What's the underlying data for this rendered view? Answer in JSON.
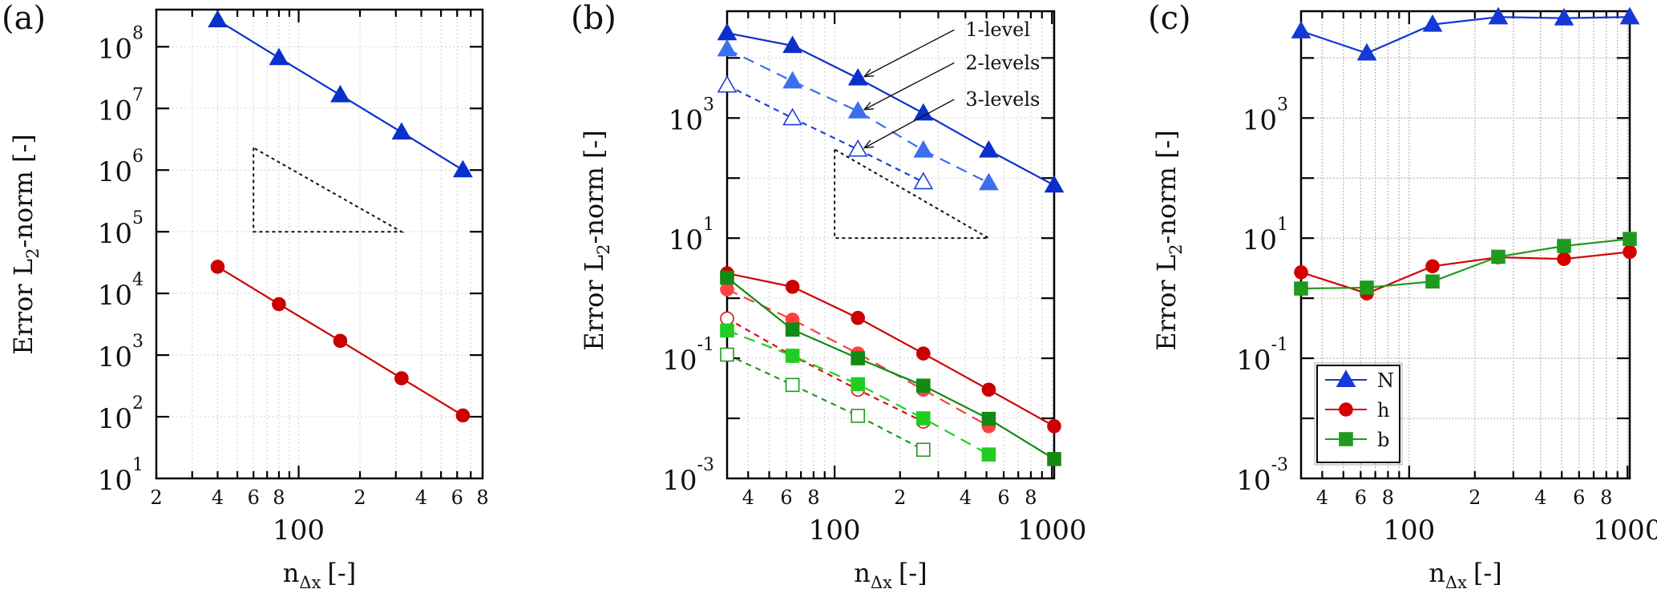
{
  "figure": {
    "panels": [
      "(a)",
      "(b)",
      "(c)"
    ]
  },
  "chart_data": [
    {
      "id": "a",
      "panel_label": "(a)",
      "type": "line",
      "xscale": "log",
      "yscale": "log",
      "xlim": [
        20,
        800
      ],
      "ylim": [
        10,
        400000000
      ],
      "xlabel": "n_Δx [-]",
      "xlabel_main": "n",
      "xlabel_sub": "Δx",
      "xlabel_unit": "[-]",
      "ylabel": "Error L2-norm [-]",
      "ylabel_pre": "Error L",
      "ylabel_sub": "2",
      "ylabel_post": "-norm [-]",
      "grid": true,
      "x_minor_tick_labels": [
        {
          "value": 20,
          "label": "2"
        },
        {
          "value": 40,
          "label": "4"
        },
        {
          "value": 60,
          "label": "6"
        },
        {
          "value": 80,
          "label": "8"
        },
        {
          "value": 200,
          "label": "2"
        },
        {
          "value": 400,
          "label": "4"
        },
        {
          "value": 600,
          "label": "6"
        },
        {
          "value": 800,
          "label": "8"
        }
      ],
      "x_major_tick_labels": [
        {
          "value": 100,
          "label": "100"
        }
      ],
      "y_tick_labels": [
        {
          "value": 10,
          "base": "10",
          "exp": "1"
        },
        {
          "value": 100,
          "base": "10",
          "exp": "2"
        },
        {
          "value": 1000,
          "base": "10",
          "exp": "3"
        },
        {
          "value": 10000,
          "base": "10",
          "exp": "4"
        },
        {
          "value": 100000,
          "base": "10",
          "exp": "5"
        },
        {
          "value": 1000000,
          "base": "10",
          "exp": "6"
        },
        {
          "value": 10000000,
          "base": "10",
          "exp": "7"
        },
        {
          "value": 100000000,
          "base": "10",
          "exp": "8"
        }
      ],
      "series": [
        {
          "name": "N",
          "color": "#0a2fcc",
          "marker": "triangle",
          "fill": "solid",
          "line": "solid",
          "x": [
            40,
            80,
            160,
            320,
            640
          ],
          "y": [
            270000000,
            66000000,
            16500000,
            4100000,
            1000000
          ]
        },
        {
          "name": "h",
          "color": "#cc0000",
          "marker": "circle",
          "fill": "solid",
          "line": "solid",
          "x": [
            40,
            80,
            160,
            320,
            640
          ],
          "y": [
            27000,
            6700,
            1700,
            420,
            105
          ]
        }
      ],
      "slope_triangle": {
        "points": [
          [
            60,
            2300000
          ],
          [
            60,
            100000
          ],
          [
            320,
            100000
          ]
        ]
      }
    },
    {
      "id": "b",
      "panel_label": "(b)",
      "type": "line",
      "xscale": "log",
      "yscale": "log",
      "xlim": [
        32,
        1024
      ],
      "ylim": [
        0.001,
        60000
      ],
      "xlabel": "n_Δx [-]",
      "xlabel_main": "n",
      "xlabel_sub": "Δx",
      "xlabel_unit": "[-]",
      "ylabel": "Error L2-norm [-]",
      "ylabel_pre": "Error L",
      "ylabel_sub": "2",
      "ylabel_post": "-norm [-]",
      "grid": true,
      "x_minor_tick_labels": [
        {
          "value": 40,
          "label": "4"
        },
        {
          "value": 60,
          "label": "6"
        },
        {
          "value": 80,
          "label": "8"
        },
        {
          "value": 200,
          "label": "2"
        },
        {
          "value": 400,
          "label": "4"
        },
        {
          "value": 600,
          "label": "6"
        },
        {
          "value": 800,
          "label": "8"
        }
      ],
      "x_major_tick_labels": [
        {
          "value": 100,
          "label": "100"
        },
        {
          "value": 1000,
          "label": "1000"
        }
      ],
      "y_tick_labels": [
        {
          "value": 0.001,
          "base": "10",
          "exp": "-3"
        },
        {
          "value": 0.1,
          "base": "10",
          "exp": "-1"
        },
        {
          "value": 10,
          "base": "10",
          "exp": "1"
        },
        {
          "value": 1000,
          "base": "10",
          "exp": "3"
        }
      ],
      "series": [
        {
          "name": "N 1-level",
          "color": "#0a2fcc",
          "marker": "triangle",
          "fill": "solid",
          "line": "solid",
          "x": [
            32,
            64,
            128,
            256,
            512,
            1024
          ],
          "y": [
            26000,
            16000,
            4600,
            1200,
            290,
            76
          ]
        },
        {
          "name": "N 2-levels",
          "color": "#3b6ff0",
          "marker": "triangle",
          "fill": "solid",
          "line": "dashed",
          "x": [
            32,
            64,
            128,
            256,
            512
          ],
          "y": [
            14000,
            4100,
            1300,
            290,
            83
          ]
        },
        {
          "name": "N 3-levels",
          "color": "#1a40d8",
          "marker": "triangle",
          "fill": "open",
          "line": "dotted",
          "x": [
            32,
            64,
            128,
            256
          ],
          "y": [
            3500,
            1000,
            300,
            86
          ]
        },
        {
          "name": "h 1-level",
          "color": "#cc0000",
          "marker": "circle",
          "fill": "solid",
          "line": "solid",
          "x": [
            32,
            64,
            128,
            256,
            512,
            1024
          ],
          "y": [
            2.6,
            1.55,
            0.47,
            0.12,
            0.03,
            0.0074
          ]
        },
        {
          "name": "h 2-levels",
          "color": "#ff4040",
          "marker": "circle",
          "fill": "solid",
          "line": "dashed",
          "x": [
            32,
            64,
            128,
            256,
            512
          ],
          "y": [
            1.4,
            0.44,
            0.12,
            0.03,
            0.0074
          ]
        },
        {
          "name": "h 3-levels",
          "color": "#d81010",
          "marker": "circle",
          "fill": "open",
          "line": "dotted",
          "x": [
            32,
            64,
            128,
            256
          ],
          "y": [
            0.46,
            0.11,
            0.03,
            0.0088
          ]
        },
        {
          "name": "b 1-level",
          "color": "#138a13",
          "marker": "square",
          "fill": "solid",
          "line": "solid",
          "x": [
            32,
            64,
            128,
            256,
            512,
            1024
          ],
          "y": [
            2.2,
            0.3,
            0.1,
            0.035,
            0.0098,
            0.0021
          ]
        },
        {
          "name": "b 2-levels",
          "color": "#22cc22",
          "marker": "square",
          "fill": "solid",
          "line": "dashed",
          "x": [
            32,
            64,
            128,
            256,
            512
          ],
          "y": [
            0.29,
            0.11,
            0.037,
            0.01,
            0.0025
          ]
        },
        {
          "name": "b 3-levels",
          "color": "#1f9a1f",
          "marker": "square",
          "fill": "open",
          "line": "dotted",
          "x": [
            32,
            64,
            128,
            256
          ],
          "y": [
            0.115,
            0.036,
            0.011,
            0.003
          ]
        }
      ],
      "annotations": [
        {
          "text": "1-level",
          "target": [
            128,
            4600
          ],
          "text_at": [
            400,
            23000
          ]
        },
        {
          "text": "2-levels",
          "target": [
            128,
            1300
          ],
          "text_at": [
            400,
            6500
          ]
        },
        {
          "text": "3-levels",
          "target": [
            128,
            300
          ],
          "text_at": [
            400,
            1600
          ]
        }
      ],
      "slope_triangle": {
        "points": [
          [
            100,
            300
          ],
          [
            100,
            10
          ],
          [
            512,
            10
          ]
        ]
      }
    },
    {
      "id": "c",
      "panel_label": "(c)",
      "type": "line",
      "xscale": "log",
      "yscale": "log",
      "xlim": [
        32,
        1024
      ],
      "ylim": [
        0.001,
        60000
      ],
      "xlabel": "n_Δx [-]",
      "xlabel_main": "n",
      "xlabel_sub": "Δx",
      "xlabel_unit": "[-]",
      "ylabel": "Error L2-norm [-]",
      "ylabel_pre": "Error L",
      "ylabel_sub": "2",
      "ylabel_post": "-norm [-]",
      "grid": true,
      "legend_position": "bottom-left",
      "x_minor_tick_labels": [
        {
          "value": 40,
          "label": "4"
        },
        {
          "value": 60,
          "label": "6"
        },
        {
          "value": 80,
          "label": "8"
        },
        {
          "value": 200,
          "label": "2"
        },
        {
          "value": 400,
          "label": "4"
        },
        {
          "value": 600,
          "label": "6"
        },
        {
          "value": 800,
          "label": "8"
        }
      ],
      "x_major_tick_labels": [
        {
          "value": 100,
          "label": "100"
        },
        {
          "value": 1000,
          "label": "1000"
        }
      ],
      "y_tick_labels": [
        {
          "value": 0.001,
          "base": "10",
          "exp": "-3"
        },
        {
          "value": 0.1,
          "base": "10",
          "exp": "-1"
        },
        {
          "value": 10,
          "base": "10",
          "exp": "1"
        },
        {
          "value": 1000,
          "base": "10",
          "exp": "3"
        }
      ],
      "series": [
        {
          "name": "N",
          "color": "#1538d6",
          "marker": "triangle",
          "fill": "solid",
          "line": "solid",
          "x": [
            32,
            64,
            128,
            256,
            512,
            1024
          ],
          "y": [
            28000,
            12000,
            36000,
            48000,
            46000,
            48000
          ]
        },
        {
          "name": "h",
          "color": "#d40000",
          "marker": "circle",
          "fill": "solid",
          "line": "solid",
          "x": [
            32,
            64,
            128,
            256,
            512,
            1024
          ],
          "y": [
            2.7,
            1.2,
            3.4,
            4.8,
            4.5,
            5.9
          ]
        },
        {
          "name": "b",
          "color": "#1f9a1f",
          "marker": "square",
          "fill": "solid",
          "line": "solid",
          "x": [
            32,
            64,
            128,
            256,
            512,
            1024
          ],
          "y": [
            1.45,
            1.5,
            1.9,
            4.9,
            7.4,
            9.7
          ]
        }
      ]
    }
  ]
}
